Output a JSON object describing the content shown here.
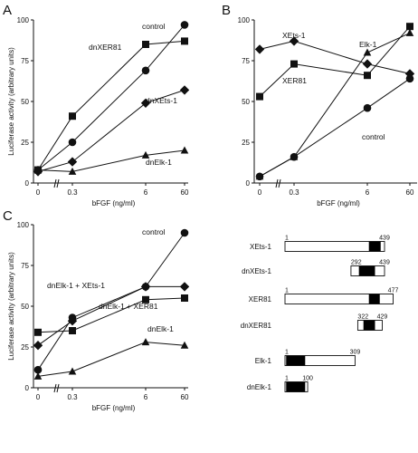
{
  "chart_data": [
    {
      "panel": "A",
      "type": "line",
      "x": [
        "0",
        "0.3",
        "6",
        "60"
      ],
      "xlabel": "bFGF (ng/ml)",
      "ylabel": "Luciferase activity (arbitrary units)",
      "ylim": [
        0,
        100
      ],
      "yticks": [
        "0",
        "25",
        "50",
        "75",
        "100"
      ],
      "series": [
        {
          "name": "control",
          "marker": "circle",
          "values": [
            8,
            25,
            69,
            97
          ]
        },
        {
          "name": "dnXER81",
          "marker": "square",
          "values": [
            8,
            41,
            85,
            87
          ]
        },
        {
          "name": "dnXEts-1",
          "marker": "diamond",
          "values": [
            7,
            13,
            49,
            57
          ]
        },
        {
          "name": "dnElk-1",
          "marker": "triangle",
          "values": [
            8,
            7,
            17,
            20
          ]
        }
      ]
    },
    {
      "panel": "B",
      "type": "line",
      "x": [
        "0",
        "0.3",
        "6",
        "60"
      ],
      "xlabel": "bFGF (ng/ml)",
      "ylabel": "",
      "ylim": [
        0,
        100
      ],
      "yticks": [
        "0",
        "25",
        "50",
        "75",
        "100"
      ],
      "series": [
        {
          "name": "XEts-1",
          "marker": "diamond",
          "values": [
            82,
            87,
            73,
            67
          ]
        },
        {
          "name": "XER81",
          "marker": "square",
          "values": [
            53,
            73,
            66,
            96
          ]
        },
        {
          "name": "Elk-1",
          "marker": "triangle",
          "values": [
            4,
            16,
            80,
            92
          ]
        },
        {
          "name": "control",
          "marker": "circle",
          "values": [
            4,
            16,
            46,
            64
          ]
        }
      ]
    },
    {
      "panel": "C",
      "type": "line",
      "x": [
        "0",
        "0.3",
        "6",
        "60"
      ],
      "xlabel": "bFGF (ng/ml)",
      "ylabel": "Luciferase activity (arbitrary units)",
      "ylim": [
        0,
        100
      ],
      "yticks": [
        "0",
        "25",
        "50",
        "75",
        "100"
      ],
      "series": [
        {
          "name": "control",
          "marker": "circle",
          "values": [
            11,
            43,
            62,
            95
          ]
        },
        {
          "name": "dnElk-1 + XEts-1",
          "marker": "diamond",
          "values": [
            26,
            41,
            62,
            62
          ]
        },
        {
          "name": "dnElk-1 + XER81",
          "marker": "square",
          "values": [
            34,
            35,
            54,
            55
          ]
        },
        {
          "name": "dnElk-1",
          "marker": "triangle",
          "values": [
            7,
            10,
            28,
            26
          ]
        }
      ]
    }
  ],
  "domains": [
    {
      "name": "XEts-1",
      "start_label": "1",
      "end_label": "439",
      "start": 1,
      "end": 439,
      "dbd": [
        371,
        422
      ]
    },
    {
      "name": "dnXEts-1",
      "start_label": "292",
      "end_label": "439",
      "start": 292,
      "end": 439,
      "dbd": [
        327,
        397
      ]
    },
    {
      "name": "XER81",
      "start_label": "1",
      "end_label": "477",
      "start": 1,
      "end": 477,
      "dbd": [
        371,
        418
      ]
    },
    {
      "name": "dnXER81",
      "start_label": "322",
      "end_label": "429",
      "start": 322,
      "end": 429,
      "dbd": [
        347,
        397
      ]
    },
    {
      "name": "Elk-1",
      "start_label": "1",
      "end_label": "309",
      "start": 1,
      "end": 309,
      "dbd": [
        6,
        89
      ]
    },
    {
      "name": "dnElk-1",
      "start_label": "1",
      "end_label": "100",
      "start": 1,
      "end": 100,
      "dbd": [
        6,
        89
      ]
    }
  ],
  "colors": {
    "ink": "#111111",
    "dbd_fill": "#000000",
    "box_fill": "#ffffff"
  }
}
